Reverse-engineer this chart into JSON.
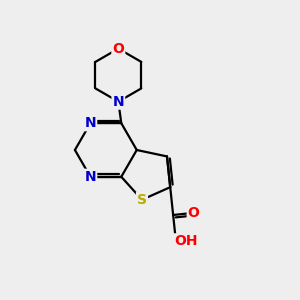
{
  "background_color": "#eeeeee",
  "atom_colors": {
    "C": "#000000",
    "N": "#0000cc",
    "O": "#ff0000",
    "S": "#bbaa00",
    "H": "#888888"
  },
  "bond_color": "#000000",
  "bond_width": 1.6,
  "font_size_atoms": 10,
  "xlim": [
    0,
    10
  ],
  "ylim": [
    0,
    10
  ]
}
